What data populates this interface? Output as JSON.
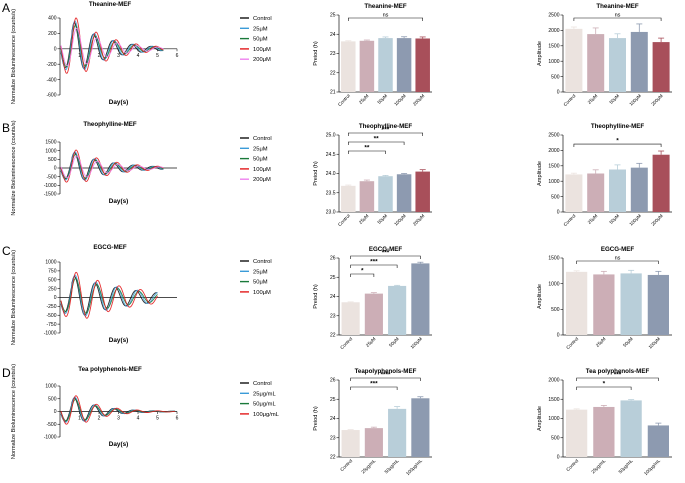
{
  "panels": [
    {
      "letter": "A",
      "trace": {
        "title": "Theanine-MEF",
        "ylabel": "Normalize Bioluminescence (counts/s)",
        "xlabel": "Day(s)",
        "xlim": [
          0,
          6
        ],
        "xticks": [
          1,
          2,
          3,
          4,
          5,
          6
        ],
        "ylim": [
          -600,
          400
        ],
        "yticks": [
          -600,
          -400,
          -200,
          0,
          200,
          400
        ],
        "amp": 350,
        "period": 0.98,
        "decay": 0.6,
        "end": 5.3,
        "legend": [
          "Control",
          "25μM",
          "50μM",
          "100μM",
          "200μM"
        ],
        "colors": [
          "#111111",
          "#3a9bd8",
          "#1a7a3a",
          "#e31a1c",
          "#ee82ee"
        ]
      },
      "period": {
        "title": "Theanine-MEF",
        "ylabel": "Preiod (h)",
        "categories": [
          "Control",
          "25μM",
          "50μM",
          "100μM",
          "200μM"
        ],
        "values": [
          23.63,
          23.66,
          23.8,
          23.8,
          23.78
        ],
        "errors": [
          0.03,
          0.04,
          0.06,
          0.07,
          0.08
        ],
        "ylim": [
          21,
          25
        ],
        "yticks": [
          21,
          22,
          23,
          24,
          25
        ],
        "colors": [
          "#ebe3df",
          "#ccaeb6",
          "#b8ced9",
          "#8d9ab0",
          "#a84f5a"
        ],
        "sig": [
          {
            "from": 0,
            "to": 4,
            "label": "ns"
          }
        ]
      },
      "amplitude": {
        "title": "Theanine-MEF",
        "ylabel": "Amplitude",
        "categories": [
          "Control",
          "25μM",
          "50μM",
          "100μM",
          "200μM"
        ],
        "values": [
          2050,
          1880,
          1750,
          1950,
          1620
        ],
        "errors": [
          60,
          200,
          140,
          260,
          130
        ],
        "ylim": [
          0,
          2500
        ],
        "yticks": [
          0,
          500,
          1000,
          1500,
          2000,
          2500
        ],
        "colors": [
          "#ebe3df",
          "#ccaeb6",
          "#b8ced9",
          "#8d9ab0",
          "#a84f5a"
        ],
        "sig": [
          {
            "from": 0,
            "to": 4,
            "label": "ns"
          }
        ]
      }
    },
    {
      "letter": "B",
      "trace": {
        "title": "Theophylline-MEF",
        "ylabel": "Normalize Bioluminescence (counts/s)",
        "xlabel": "Day(s)",
        "xlim": [
          0,
          6
        ],
        "xticks": [],
        "ylim": [
          -1500,
          1500
        ],
        "yticks": [
          -1500,
          -1000,
          -500,
          0,
          500,
          1000,
          1500
        ],
        "amp": 900,
        "period": 1.0,
        "decay": 0.55,
        "end": 5.3,
        "legend": [
          "Control",
          "25μM",
          "50μM",
          "100μM",
          "200μM"
        ],
        "colors": [
          "#111111",
          "#3a9bd8",
          "#1a7a3a",
          "#e31a1c",
          "#ee82ee"
        ]
      },
      "period": {
        "title": "Theophylline-MEF",
        "ylabel": "Preiod (h)",
        "categories": [
          "Control",
          "25μM",
          "50μM",
          "100μM",
          "200μM"
        ],
        "values": [
          23.68,
          23.8,
          23.93,
          23.98,
          24.05
        ],
        "errors": [
          0.02,
          0.03,
          0.02,
          0.02,
          0.05
        ],
        "ylim": [
          23.0,
          25.0
        ],
        "yticks": [
          23.0,
          23.5,
          24.0,
          24.5,
          25.0
        ],
        "colors": [
          "#ebe3df",
          "#ccaeb6",
          "#b8ced9",
          "#8d9ab0",
          "#a84f5a"
        ],
        "sig": [
          {
            "from": 0,
            "to": 2,
            "label": "**"
          },
          {
            "from": 0,
            "to": 3,
            "label": "**"
          },
          {
            "from": 0,
            "to": 4,
            "label": "***"
          }
        ]
      },
      "amplitude": {
        "title": "Theophylline-MEF",
        "ylabel": "Amplitude",
        "categories": [
          "Control",
          "25μM",
          "50μM",
          "100μM",
          "200μM"
        ],
        "values": [
          1220,
          1250,
          1380,
          1440,
          1860
        ],
        "errors": [
          40,
          120,
          150,
          140,
          120
        ],
        "ylim": [
          0,
          2500
        ],
        "yticks": [
          0,
          500,
          1000,
          1500,
          2000,
          2500
        ],
        "colors": [
          "#ebe3df",
          "#ccaeb6",
          "#b8ced9",
          "#8d9ab0",
          "#a84f5a"
        ],
        "sig": [
          {
            "from": 0,
            "to": 4,
            "label": "*"
          }
        ]
      }
    },
    {
      "letter": "C",
      "trace": {
        "title": "EGCG-MEF",
        "ylabel": "Normalize Bioluminescence (counts/s)",
        "xlabel": "Day(s)",
        "xlim": [
          0,
          6
        ],
        "xticks": [],
        "ylim": [
          -1000,
          1000
        ],
        "yticks": [
          -1000,
          -750,
          -500,
          -250,
          0,
          250,
          500,
          750,
          1000
        ],
        "amp": 600,
        "period": 1.05,
        "decay": 0.35,
        "end": 5.0,
        "legend": [
          "Control",
          "25μM",
          "50μM",
          "100μM"
        ],
        "colors": [
          "#111111",
          "#3a9bd8",
          "#1a7a3a",
          "#e31a1c"
        ]
      },
      "period": {
        "title": "EGCG-MEF",
        "ylabel": "Preiod (h)",
        "categories": [
          "Control",
          "25μM",
          "50μM",
          "100μM"
        ],
        "values": [
          23.7,
          24.15,
          24.55,
          25.72
        ],
        "errors": [
          0.02,
          0.05,
          0.03,
          0.06
        ],
        "ylim": [
          22,
          26
        ],
        "yticks": [
          22,
          23,
          24,
          25,
          26
        ],
        "colors": [
          "#ebe3df",
          "#ccaeb6",
          "#b8ced9",
          "#8d9ab0"
        ],
        "sig": [
          {
            "from": 0,
            "to": 1,
            "label": "*"
          },
          {
            "from": 0,
            "to": 2,
            "label": "***"
          },
          {
            "from": 0,
            "to": 3,
            "label": "***"
          }
        ]
      },
      "amplitude": {
        "title": "EGCG-MEF",
        "ylabel": "Amplitude",
        "categories": [
          "Control",
          "25μM",
          "50μM",
          "100μM"
        ],
        "values": [
          1230,
          1180,
          1200,
          1170
        ],
        "errors": [
          20,
          60,
          60,
          70
        ],
        "ylim": [
          0,
          1500
        ],
        "yticks": [
          0,
          500,
          1000,
          1500
        ],
        "colors": [
          "#ebe3df",
          "#ccaeb6",
          "#b8ced9",
          "#8d9ab0"
        ],
        "sig": [
          {
            "from": 0,
            "to": 3,
            "label": "ns"
          }
        ]
      }
    },
    {
      "letter": "D",
      "trace": {
        "title": "Tea polyphenols-MEF",
        "ylabel": "Normalize Bioluminescence (counts/s)",
        "xlabel": "Day(s)",
        "xlim": [
          0,
          6
        ],
        "xticks": [
          1,
          2,
          3,
          4,
          5,
          6
        ],
        "ylim": [
          -1000,
          1000
        ],
        "yticks": [
          -1000,
          -500,
          0,
          500,
          1000
        ],
        "amp": 550,
        "period": 1.0,
        "decay": 0.75,
        "end": 5.9,
        "legend": [
          "Control",
          "25μg/mL",
          "50μg/mL",
          "100μg/mL"
        ],
        "colors": [
          "#111111",
          "#3a9bd8",
          "#1a7a3a",
          "#e31a1c"
        ]
      },
      "period": {
        "title": "Teapolyphenols-MEF",
        "ylabel": "Preiod (h)",
        "categories": [
          "Control",
          "25μg/mL",
          "50μg/mL",
          "100μg/mL"
        ],
        "values": [
          23.4,
          23.5,
          24.5,
          25.05
        ],
        "errors": [
          0.02,
          0.05,
          0.12,
          0.08
        ],
        "ylim": [
          22,
          26
        ],
        "yticks": [
          22,
          23,
          24,
          25,
          26
        ],
        "colors": [
          "#ebe3df",
          "#ccaeb6",
          "#b8ced9",
          "#8d9ab0"
        ],
        "sig": [
          {
            "from": 0,
            "to": 2,
            "label": "***"
          },
          {
            "from": 0,
            "to": 3,
            "label": "****"
          }
        ]
      },
      "amplitude": {
        "title": "Tea polyphenols-MEF",
        "ylabel": "Amplitude",
        "categories": [
          "Control",
          "25μg/mL",
          "50μg/mL",
          "100μg/mL"
        ],
        "values": [
          1230,
          1300,
          1470,
          820
        ],
        "errors": [
          20,
          40,
          20,
          60
        ],
        "ylim": [
          0,
          2000
        ],
        "yticks": [
          0,
          500,
          1000,
          1500,
          2000
        ],
        "colors": [
          "#ebe3df",
          "#ccaeb6",
          "#b8ced9",
          "#8d9ab0"
        ],
        "sig": [
          {
            "from": 0,
            "to": 2,
            "label": "*"
          },
          {
            "from": 0,
            "to": 3,
            "label": "***"
          }
        ]
      }
    }
  ]
}
